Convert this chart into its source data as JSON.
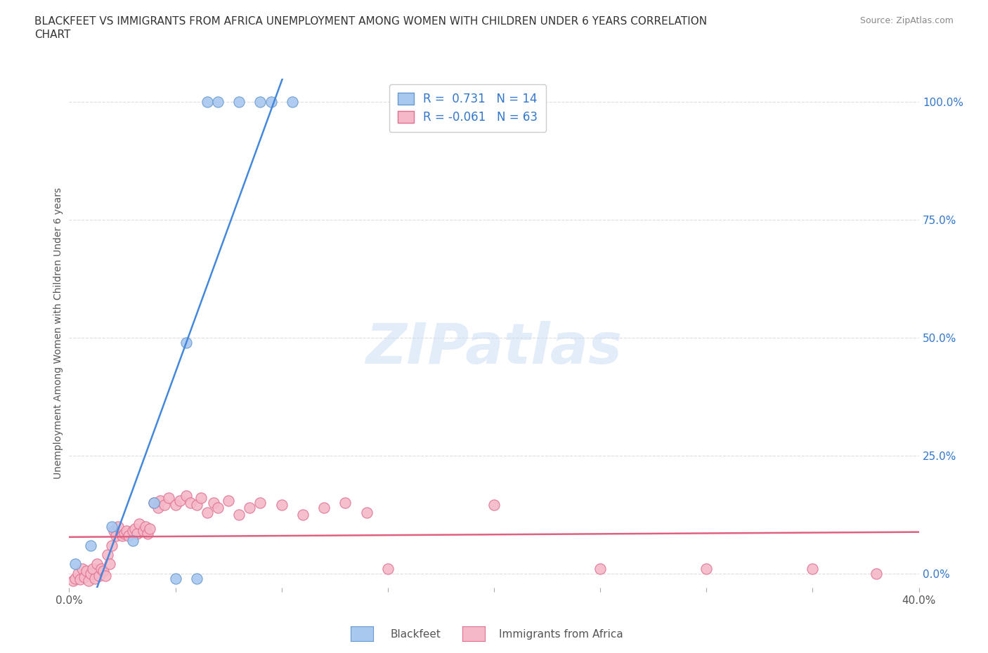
{
  "title_line1": "BLACKFEET VS IMMIGRANTS FROM AFRICA UNEMPLOYMENT AMONG WOMEN WITH CHILDREN UNDER 6 YEARS CORRELATION",
  "title_line2": "CHART",
  "source": "Source: ZipAtlas.com",
  "ylabel": "Unemployment Among Women with Children Under 6 years",
  "xlim": [
    0.0,
    0.4
  ],
  "ylim": [
    -0.03,
    1.05
  ],
  "xticks": [
    0.0,
    0.05,
    0.1,
    0.15,
    0.2,
    0.25,
    0.3,
    0.35,
    0.4
  ],
  "xticklabels": [
    "0.0%",
    "",
    "",
    "",
    "",
    "",
    "",
    "",
    "40.0%"
  ],
  "yticks_right": [
    0.0,
    0.25,
    0.5,
    0.75,
    1.0
  ],
  "yticklabels_right": [
    "0.0%",
    "25.0%",
    "50.0%",
    "75.0%",
    "100.0%"
  ],
  "watermark": "ZIPatlas",
  "background_color": "#ffffff",
  "grid_color": "#dddddd",
  "blackfeet_color": "#a8c8f0",
  "africa_color": "#f5b8c8",
  "blackfeet_edge": "#6699cc",
  "africa_edge": "#e07090",
  "blue_line_color": "#4488dd",
  "pink_line_color": "#e06080",
  "R_blackfeet": 0.731,
  "N_blackfeet": 14,
  "R_africa": -0.061,
  "N_africa": 63,
  "blackfeet_x": [
    0.003,
    0.01,
    0.02,
    0.03,
    0.04,
    0.05,
    0.055,
    0.06,
    0.065,
    0.07,
    0.08,
    0.09,
    0.095,
    0.105
  ],
  "blackfeet_y": [
    0.02,
    0.06,
    0.1,
    0.07,
    0.15,
    -0.01,
    0.49,
    -0.01,
    1.0,
    1.0,
    1.0,
    1.0,
    1.0,
    1.0
  ],
  "africa_x": [
    0.002,
    0.003,
    0.004,
    0.005,
    0.006,
    0.007,
    0.008,
    0.009,
    0.01,
    0.011,
    0.012,
    0.013,
    0.014,
    0.015,
    0.016,
    0.017,
    0.018,
    0.019,
    0.02,
    0.021,
    0.022,
    0.023,
    0.025,
    0.026,
    0.027,
    0.028,
    0.03,
    0.031,
    0.032,
    0.033,
    0.035,
    0.036,
    0.037,
    0.038,
    0.04,
    0.042,
    0.043,
    0.045,
    0.047,
    0.05,
    0.052,
    0.055,
    0.057,
    0.06,
    0.062,
    0.065,
    0.068,
    0.07,
    0.075,
    0.08,
    0.085,
    0.09,
    0.1,
    0.11,
    0.12,
    0.13,
    0.14,
    0.15,
    0.2,
    0.25,
    0.3,
    0.35,
    0.38
  ],
  "africa_y": [
    -0.015,
    -0.01,
    0.0,
    -0.012,
    0.01,
    -0.008,
    0.005,
    -0.015,
    0.0,
    0.01,
    -0.01,
    0.02,
    -0.005,
    0.01,
    0.005,
    -0.005,
    0.04,
    0.02,
    0.06,
    0.09,
    0.08,
    0.1,
    0.08,
    0.085,
    0.09,
    0.08,
    0.09,
    0.095,
    0.085,
    0.105,
    0.09,
    0.1,
    0.085,
    0.095,
    0.15,
    0.14,
    0.155,
    0.145,
    0.16,
    0.145,
    0.155,
    0.165,
    0.15,
    0.145,
    0.16,
    0.13,
    0.15,
    0.14,
    0.155,
    0.125,
    0.14,
    0.15,
    0.145,
    0.125,
    0.14,
    0.15,
    0.13,
    0.01,
    0.145,
    0.01,
    0.01,
    0.01,
    0.0
  ]
}
